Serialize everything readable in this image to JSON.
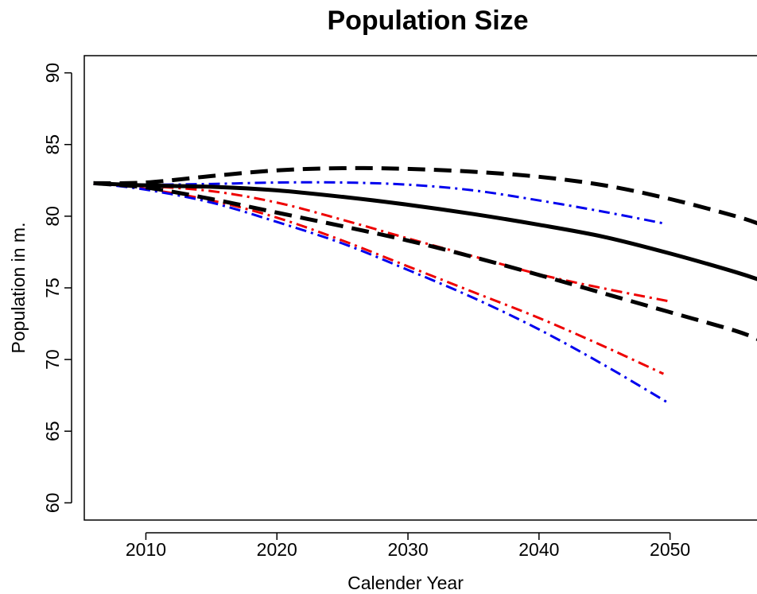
{
  "chart_data": {
    "type": "line",
    "title": "Population Size",
    "xlabel": "Calender Year",
    "ylabel": "Population in m.",
    "xlim": [
      2005.3,
      2057
    ],
    "ylim": [
      58.8,
      91.2
    ],
    "xticks": [
      2010,
      2020,
      2030,
      2040,
      2050
    ],
    "yticks": [
      60,
      65,
      70,
      75,
      80,
      85,
      90
    ],
    "grid": false,
    "legend": null,
    "series": [
      {
        "color": "#000000",
        "style": "solid",
        "width": 5,
        "x": [
          2006,
          2010,
          2015,
          2020,
          2025,
          2030,
          2035,
          2040,
          2045,
          2050,
          2055,
          2057
        ],
        "y": [
          82.3,
          82.15,
          82.05,
          81.8,
          81.35,
          80.8,
          80.15,
          79.4,
          78.55,
          77.4,
          76.1,
          75.5
        ]
      },
      {
        "color": "#000000",
        "style": "dashed",
        "width": 5,
        "x": [
          2006,
          2010,
          2015,
          2020,
          2025,
          2030,
          2035,
          2040,
          2045,
          2050,
          2055,
          2057
        ],
        "y": [
          82.3,
          82.35,
          82.8,
          83.2,
          83.35,
          83.3,
          83.1,
          82.75,
          82.15,
          81.2,
          80.0,
          79.4
        ]
      },
      {
        "color": "#000000",
        "style": "dashed",
        "width": 5,
        "x": [
          2006,
          2010,
          2015,
          2020,
          2025,
          2030,
          2035,
          2040,
          2045,
          2050,
          2055,
          2057
        ],
        "y": [
          82.3,
          82.0,
          81.2,
          80.25,
          79.3,
          78.3,
          77.15,
          75.9,
          74.6,
          73.3,
          72.0,
          71.3
        ]
      },
      {
        "color": "#0000ee",
        "style": "dashdot",
        "width": 3,
        "x": [
          2006,
          2010,
          2015,
          2020,
          2025,
          2030,
          2035,
          2040,
          2045,
          2049.5
        ],
        "y": [
          82.3,
          82.2,
          82.25,
          82.35,
          82.35,
          82.2,
          81.8,
          81.1,
          80.3,
          79.5
        ]
      },
      {
        "color": "#ee0000",
        "style": "dashdot",
        "width": 3,
        "x": [
          2006,
          2010,
          2015,
          2020,
          2025,
          2030,
          2035,
          2040,
          2045,
          2050
        ],
        "y": [
          82.3,
          82.1,
          81.75,
          80.95,
          79.75,
          78.45,
          77.2,
          75.95,
          74.95,
          74.05
        ]
      },
      {
        "color": "#ee0000",
        "style": "dashdot",
        "width": 3,
        "x": [
          2006,
          2010,
          2015,
          2020,
          2025,
          2030,
          2035,
          2040,
          2045,
          2049.5
        ],
        "y": [
          82.3,
          81.9,
          81.1,
          79.9,
          78.3,
          76.5,
          74.7,
          72.9,
          70.9,
          69.0
        ]
      },
      {
        "color": "#0000ee",
        "style": "dashdot",
        "width": 3,
        "x": [
          2006,
          2010,
          2015,
          2020,
          2025,
          2030,
          2035,
          2040,
          2045,
          2050
        ],
        "y": [
          82.3,
          81.85,
          80.95,
          79.6,
          78.1,
          76.25,
          74.3,
          72.1,
          69.6,
          66.9
        ]
      }
    ]
  }
}
